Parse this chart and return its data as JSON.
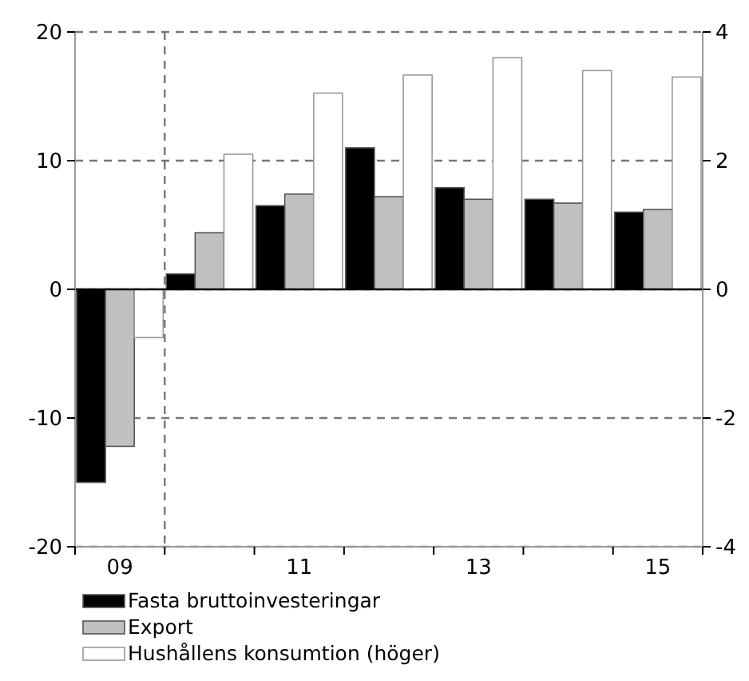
{
  "chart_data": {
    "type": "bar",
    "categories": [
      "09",
      null,
      "11",
      null,
      "13",
      null,
      "15"
    ],
    "series": [
      {
        "name": "Fasta bruttoinvesteringar",
        "color": "#000000",
        "values": [
          -15.0,
          1.2,
          6.5,
          11.0,
          7.9,
          7.0,
          6.0
        ]
      },
      {
        "name": "Export",
        "color": "#c0c0c0",
        "values": [
          -12.2,
          4.4,
          7.4,
          7.2,
          7.0,
          6.7,
          6.2
        ]
      },
      {
        "name": "Hushållens konsumtion (höger)",
        "color": "#ffffff",
        "axis": "y2",
        "values": [
          -0.75,
          2.1,
          3.05,
          3.33,
          3.6,
          3.4,
          3.3
        ]
      }
    ],
    "ylim": [
      -20,
      20
    ],
    "yticks": [
      -20,
      -10,
      0,
      10,
      20
    ],
    "y2lim": [
      -4,
      4
    ],
    "y2ticks": [
      -4,
      -2,
      0,
      2,
      4
    ],
    "grid": "y",
    "legend": "bottom"
  }
}
